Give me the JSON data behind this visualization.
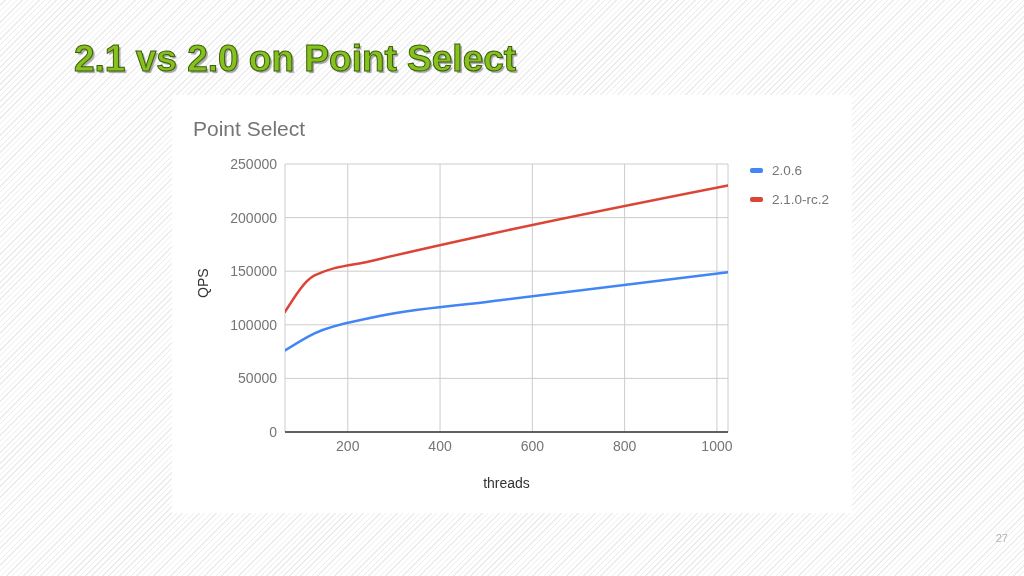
{
  "chart_data": {
    "type": "line",
    "title": "2.1 vs 2.0 on Point Select",
    "subtitle": "Point Select",
    "xlabel": "threads",
    "ylabel": "QPS",
    "x": [
      64,
      128,
      256,
      512,
      1024
    ],
    "series": [
      {
        "name": "2.0.6",
        "color": "#4285f4",
        "values": [
          76000,
          92000,
          107000,
          122000,
          149000
        ]
      },
      {
        "name": "2.1.0-rc.2",
        "color": "#db4437",
        "values": [
          112000,
          146000,
          160000,
          185000,
          230000
        ]
      }
    ],
    "xlim": [
      64,
      1024
    ],
    "xticks": [
      200,
      400,
      600,
      800,
      1000
    ],
    "ylim": [
      0,
      250000
    ],
    "yticks": [
      0,
      50000,
      100000,
      150000,
      200000,
      250000
    ],
    "grid": true,
    "legend": "right",
    "annotations": [
      "27"
    ]
  }
}
